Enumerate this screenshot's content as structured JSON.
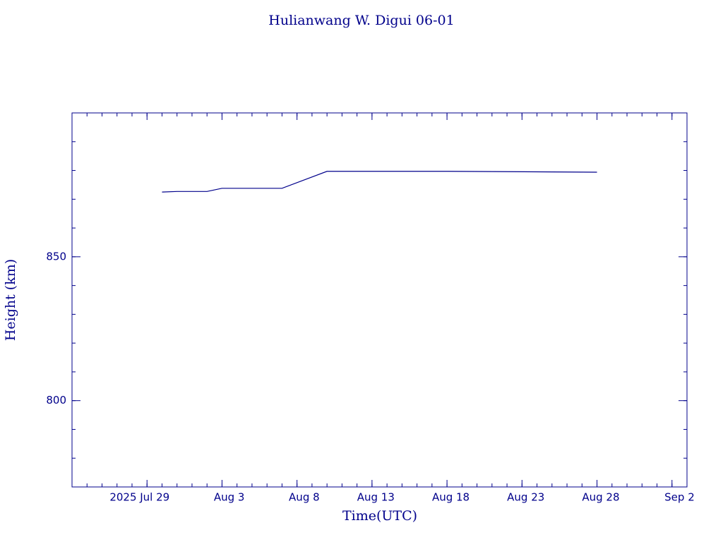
{
  "chart_data": {
    "type": "line",
    "title": "Hulianwang W. Digui 06-01",
    "x_label": "Time(UTC)",
    "y_label": "Height (km)",
    "x": [
      "2025-07-30",
      "2025-07-31",
      "2025-08-02",
      "2025-08-03",
      "2025-08-07",
      "2025-08-10",
      "2025-08-18",
      "2025-08-28"
    ],
    "series": [
      {
        "color": "#00008b",
        "values": [
          872.5,
          872.7,
          872.7,
          873.8,
          873.8,
          879.7,
          879.7,
          879.4
        ]
      }
    ],
    "xlim": [
      "2025-07-24",
      "2025-09-03"
    ],
    "xticks": [
      {
        "value": "2025-07-29",
        "label": "2025 Jul 29"
      },
      {
        "value": "2025-08-03",
        "label": "Aug 3"
      },
      {
        "value": "2025-08-08",
        "label": "Aug 8"
      },
      {
        "value": "2025-08-13",
        "label": "Aug 13"
      },
      {
        "value": "2025-08-18",
        "label": "Aug 18"
      },
      {
        "value": "2025-08-23",
        "label": "Aug 23"
      },
      {
        "value": "2025-08-28",
        "label": "Aug 28"
      },
      {
        "value": "2025-09-02",
        "label": "Sep 2"
      }
    ],
    "ylim": [
      770,
      900
    ],
    "yticks": [
      800,
      850
    ],
    "grid": false
  }
}
